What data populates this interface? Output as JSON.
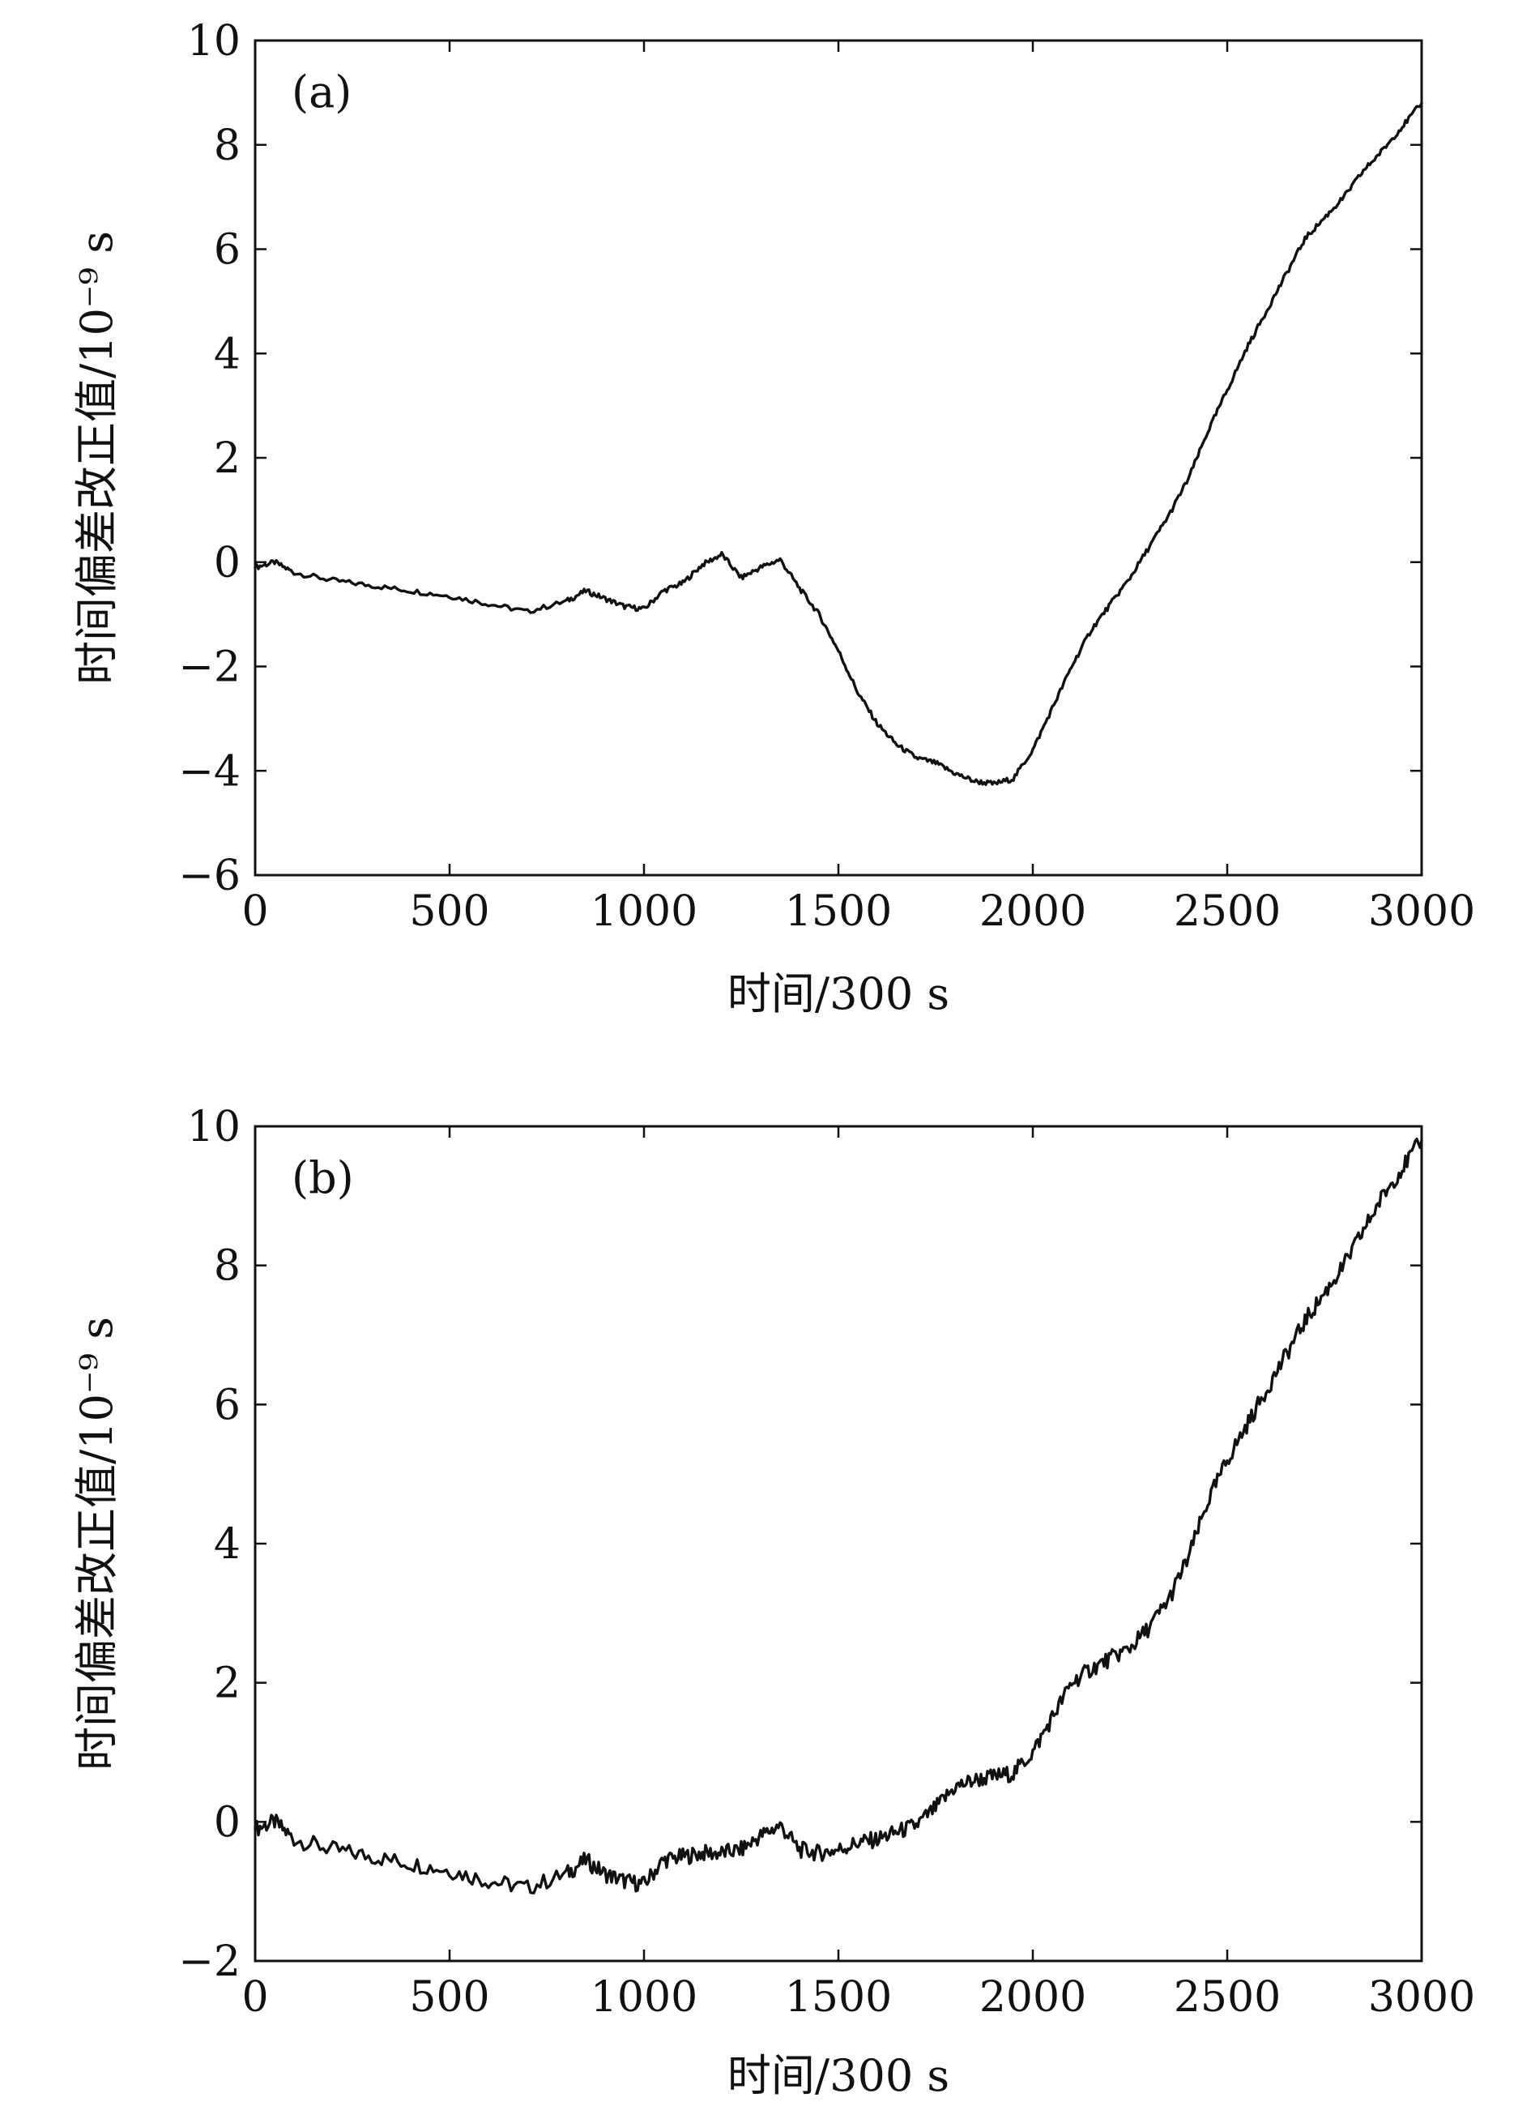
{
  "chart_data": [
    {
      "type": "line",
      "panel_label": "(a)",
      "xlabel": "时间/300 s",
      "ylabel": "时间偏差改正值/10⁻⁹ s",
      "xlim": [
        0,
        3000
      ],
      "ylim": [
        -6,
        10
      ],
      "xticks": [
        0,
        500,
        1000,
        1500,
        2000,
        2500,
        3000
      ],
      "yticks": [
        -6,
        -4,
        -2,
        0,
        2,
        4,
        6,
        8,
        10
      ],
      "xtick_labels": [
        "0",
        "500",
        "1000",
        "1500",
        "2000",
        "2500",
        "3000"
      ],
      "ytick_labels": [
        "−6",
        "−4",
        "−2",
        "0",
        "2",
        "4",
        "6",
        "8",
        "10"
      ],
      "grid": false,
      "series": [
        {
          "x": [
            0,
            50,
            100,
            200,
            300,
            400,
            500,
            600,
            700,
            800,
            850,
            900,
            950,
            1000,
            1050,
            1100,
            1150,
            1200,
            1250,
            1300,
            1350,
            1400,
            1450,
            1500,
            1550,
            1600,
            1650,
            1700,
            1750,
            1800,
            1850,
            1900,
            1950,
            2000,
            2050,
            2100,
            2150,
            2200,
            2250,
            2300,
            2350,
            2400,
            2450,
            2500,
            2550,
            2600,
            2650,
            2700,
            2750,
            2800,
            2850,
            2900,
            2950,
            3000
          ],
          "y": [
            -0.1,
            0.0,
            -0.2,
            -0.35,
            -0.45,
            -0.55,
            -0.65,
            -0.8,
            -0.95,
            -0.75,
            -0.55,
            -0.7,
            -0.85,
            -0.9,
            -0.55,
            -0.4,
            -0.05,
            0.15,
            -0.3,
            -0.1,
            0.05,
            -0.5,
            -1.0,
            -1.7,
            -2.5,
            -3.1,
            -3.5,
            -3.75,
            -3.85,
            -4.05,
            -4.2,
            -4.25,
            -4.15,
            -3.6,
            -2.8,
            -2.0,
            -1.3,
            -0.8,
            -0.3,
            0.3,
            0.9,
            1.6,
            2.5,
            3.3,
            4.1,
            4.8,
            5.5,
            6.2,
            6.6,
            7.0,
            7.5,
            7.9,
            8.35,
            8.8
          ]
        }
      ]
    },
    {
      "type": "line",
      "panel_label": "(b)",
      "xlabel": "时间/300 s",
      "ylabel": "时间偏差改正值/10⁻⁹ s",
      "xlim": [
        0,
        3000
      ],
      "ylim": [
        -2,
        10
      ],
      "xticks": [
        0,
        500,
        1000,
        1500,
        2000,
        2500,
        3000
      ],
      "yticks": [
        -2,
        0,
        2,
        4,
        6,
        8,
        10
      ],
      "xtick_labels": [
        "0",
        "500",
        "1000",
        "1500",
        "2000",
        "2500",
        "3000"
      ],
      "ytick_labels": [
        "−2",
        "0",
        "2",
        "4",
        "6",
        "8",
        "10"
      ],
      "grid": false,
      "series": [
        {
          "x": [
            0,
            50,
            100,
            200,
            300,
            400,
            500,
            600,
            700,
            800,
            850,
            900,
            950,
            1000,
            1050,
            1100,
            1150,
            1200,
            1250,
            1300,
            1350,
            1400,
            1450,
            1500,
            1550,
            1600,
            1650,
            1700,
            1750,
            1800,
            1850,
            1900,
            1950,
            2000,
            2050,
            2100,
            2150,
            2200,
            2250,
            2300,
            2350,
            2400,
            2450,
            2500,
            2550,
            2600,
            2650,
            2700,
            2750,
            2800,
            2850,
            2900,
            2950,
            3000
          ],
          "y": [
            -0.1,
            0.0,
            -0.25,
            -0.4,
            -0.5,
            -0.6,
            -0.7,
            -0.85,
            -0.95,
            -0.75,
            -0.55,
            -0.75,
            -0.85,
            -0.9,
            -0.55,
            -0.5,
            -0.45,
            -0.45,
            -0.4,
            -0.2,
            -0.05,
            -0.4,
            -0.45,
            -0.4,
            -0.3,
            -0.25,
            -0.15,
            -0.05,
            0.2,
            0.5,
            0.6,
            0.65,
            0.7,
            1.0,
            1.5,
            2.0,
            2.2,
            2.35,
            2.5,
            2.8,
            3.2,
            3.8,
            4.6,
            5.2,
            5.7,
            6.2,
            6.7,
            7.2,
            7.6,
            8.0,
            8.5,
            9.0,
            9.4,
            9.8
          ]
        }
      ]
    }
  ]
}
